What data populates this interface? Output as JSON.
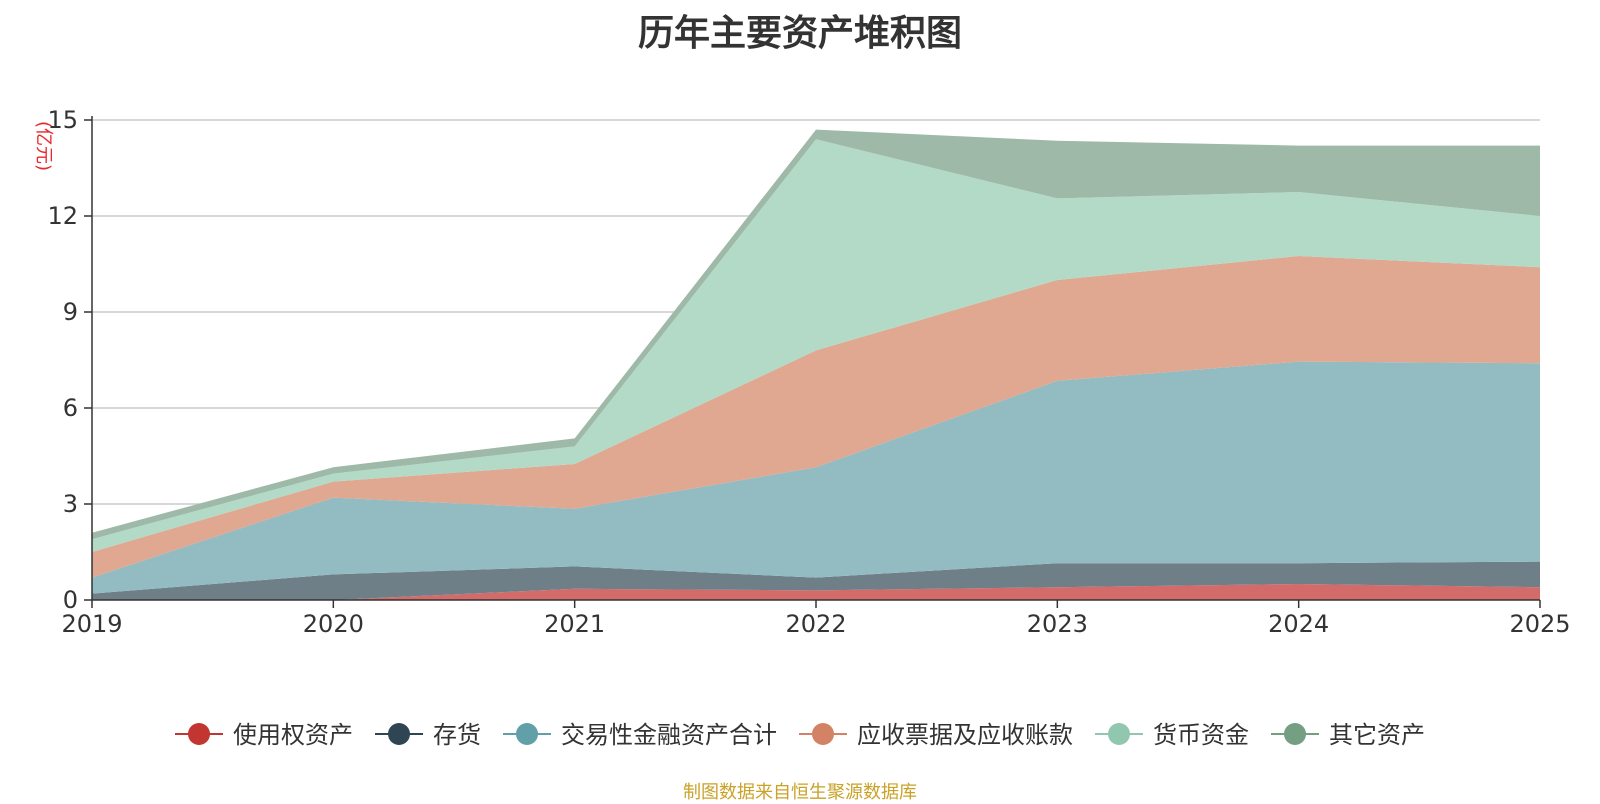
{
  "title": "历年主要资产堆积图",
  "source": "制图数据来自恒生聚源数据库",
  "colors": {
    "unit_label": "#e8262d",
    "grid": "#cccccc",
    "axis": "#333333"
  },
  "chart_data": {
    "type": "area",
    "stacked": true,
    "title": "历年主要资产堆积图",
    "ylabel": "(亿元)",
    "xlabel": "",
    "categories": [
      "2019",
      "2020",
      "2021",
      "2022",
      "2023",
      "2024",
      "2025"
    ],
    "ylim": [
      0,
      15
    ],
    "yticks": [
      0,
      3,
      6,
      9,
      12,
      15
    ],
    "grid": true,
    "legend_position": "bottom",
    "series": [
      {
        "name": "使用权资产",
        "color": "#c23531",
        "fill": "#d46b6b",
        "values": [
          0,
          0,
          0.35,
          0.3,
          0.4,
          0.5,
          0.4
        ]
      },
      {
        "name": "存货",
        "color": "#2f4554",
        "fill": "#6f7f88",
        "values": [
          0.2,
          0.8,
          0.7,
          0.4,
          0.75,
          0.65,
          0.8
        ]
      },
      {
        "name": "交易性金融资产合计",
        "color": "#61a0a8",
        "fill": "#92bcc2",
        "values": [
          0.5,
          2.4,
          1.8,
          3.45,
          5.7,
          6.3,
          6.2
        ]
      },
      {
        "name": "应收票据及应收账款",
        "color": "#d48265",
        "fill": "#e0a791",
        "values": [
          0.8,
          0.5,
          1.4,
          3.65,
          3.15,
          3.3,
          3.0
        ]
      },
      {
        "name": "货币资金",
        "color": "#91c7ae",
        "fill": "#b2dac7",
        "values": [
          0.4,
          0.25,
          0.55,
          6.6,
          2.55,
          2.0,
          1.6
        ]
      },
      {
        "name": "其它资产",
        "color": "#749f83",
        "fill": "#9eb9a7",
        "values": [
          0.2,
          0.2,
          0.25,
          0.3,
          1.8,
          1.45,
          2.2
        ]
      }
    ]
  }
}
